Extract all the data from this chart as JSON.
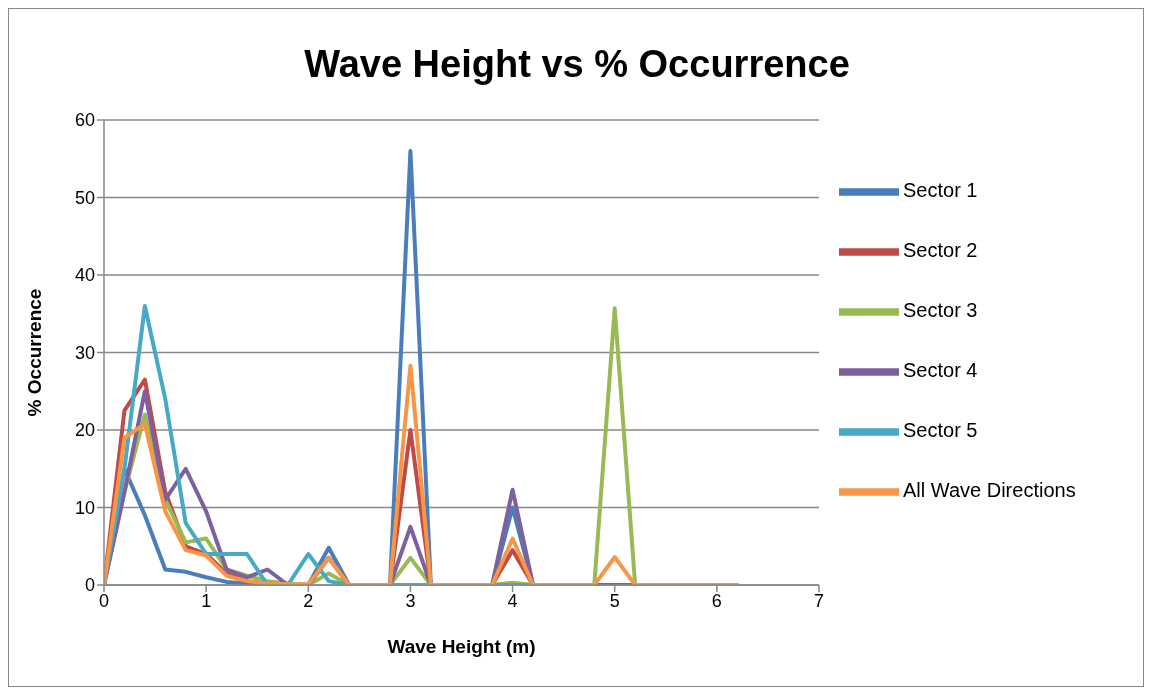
{
  "chart_data": {
    "type": "line",
    "title": "Wave Height vs % Occurrence",
    "xlabel": "Wave Height (m)",
    "ylabel": "% Occurrence",
    "x": [
      0,
      0.2,
      0.4,
      0.6,
      0.8,
      1,
      1.2,
      1.4,
      1.6,
      1.8,
      2,
      2.2,
      2.4,
      2.6,
      2.8,
      3,
      3.2,
      3.4,
      3.6,
      3.8,
      4,
      4.2,
      4.4,
      4.6,
      4.8,
      5,
      5.2,
      5.4,
      5.6,
      5.8,
      6,
      6.2
    ],
    "series": [
      {
        "name": "Sector 1",
        "color": "#4a7ebb",
        "values": [
          0,
          15,
          9,
          2,
          1.7,
          1,
          0.4,
          0.2,
          0.1,
          0,
          0,
          4.8,
          0,
          0,
          0,
          56,
          0,
          0,
          0,
          0,
          10,
          0,
          0,
          null,
          null,
          null,
          null,
          null,
          null,
          null,
          null,
          null
        ]
      },
      {
        "name": "Sector 2",
        "color": "#be4b48",
        "values": [
          0,
          22.5,
          26.5,
          12,
          5,
          4,
          1.5,
          0.5,
          0.2,
          0,
          0,
          3.5,
          0,
          0,
          0,
          20,
          0,
          0,
          0,
          0,
          4.5,
          0,
          0,
          null,
          null,
          null,
          null,
          null,
          null,
          null,
          null,
          null
        ]
      },
      {
        "name": "Sector 3",
        "color": "#98b954",
        "values": [
          0,
          12,
          22,
          11,
          5.5,
          6,
          2,
          1.2,
          0.5,
          0.2,
          0,
          1.5,
          0,
          0,
          0,
          3.5,
          0,
          0,
          0,
          0,
          0.3,
          0,
          0,
          0,
          0,
          35.7,
          0,
          0,
          null,
          null,
          null,
          null
        ]
      },
      {
        "name": "Sector 4",
        "color": "#7d60a0",
        "values": [
          0,
          12,
          25,
          11,
          15,
          9.5,
          2,
          1,
          2,
          0,
          0,
          3.5,
          0,
          0,
          0,
          7.5,
          0,
          0,
          0,
          0,
          12.3,
          0,
          0,
          0,
          0,
          0,
          0,
          0,
          0,
          0,
          0,
          0
        ]
      },
      {
        "name": "Sector 5",
        "color": "#46aac5",
        "values": [
          0,
          15,
          36,
          24,
          8,
          4,
          4,
          4,
          0,
          0,
          4,
          0.5,
          0,
          0,
          0,
          0,
          0,
          0,
          0,
          0,
          0,
          0,
          0,
          null,
          null,
          null,
          null,
          null,
          null,
          null,
          null,
          null
        ]
      },
      {
        "name": "All Wave Directions",
        "color": "#f79646",
        "values": [
          0,
          19,
          20.8,
          9.5,
          4.5,
          3.8,
          1.2,
          0.5,
          0.2,
          0.1,
          0.1,
          3.5,
          0,
          0,
          0,
          28.3,
          0,
          0,
          0,
          0,
          6,
          0,
          0,
          0,
          0,
          3.6,
          0,
          0,
          0,
          0,
          0,
          0
        ]
      }
    ],
    "xlim": [
      0,
      7
    ],
    "xticks": [
      0,
      1,
      2,
      3,
      4,
      5,
      6,
      7
    ],
    "ylim": [
      0,
      60
    ],
    "yticks": [
      0,
      10,
      20,
      30,
      40,
      50,
      60
    ],
    "grid": "y",
    "legend": "right",
    "marker": "none",
    "line_style": "solid"
  }
}
